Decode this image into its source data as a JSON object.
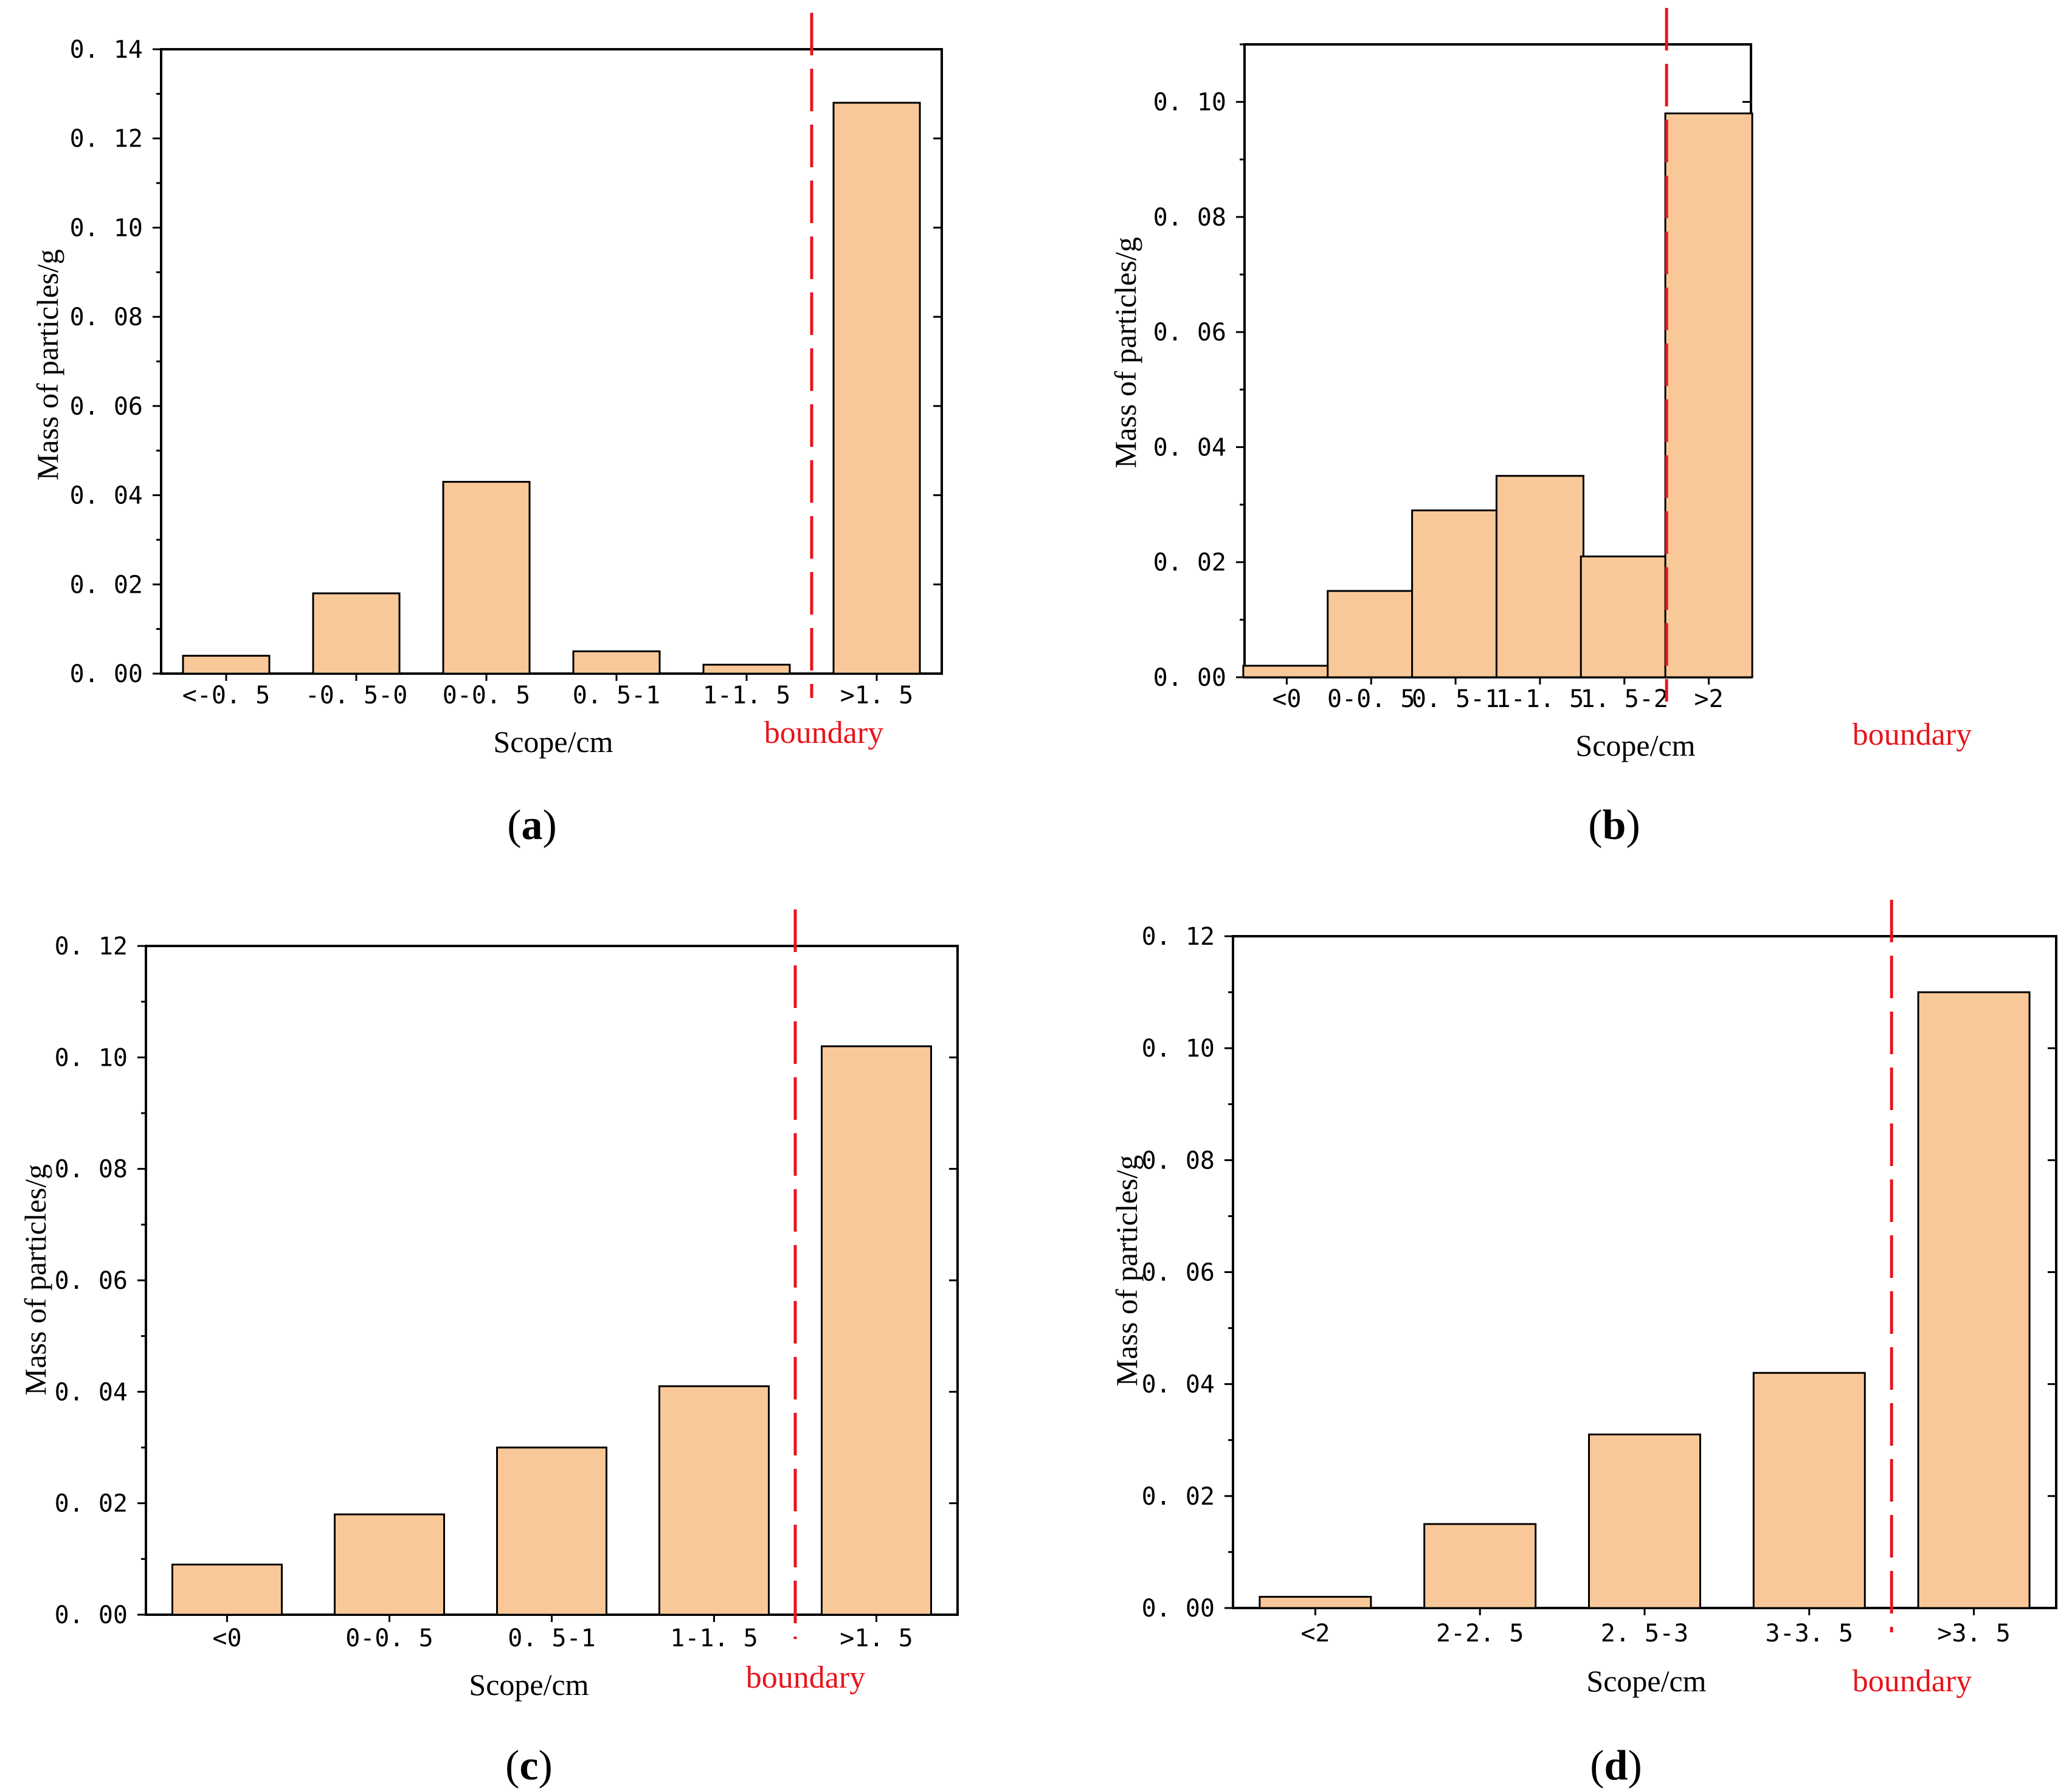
{
  "colors": {
    "bar_fill": "#f9c898",
    "bar_stroke": "#000000",
    "boundary": "#e8141c",
    "axis": "#000000"
  },
  "chart_data": [
    {
      "type": "bar",
      "caption": "a",
      "xlabel": "Scope/cm",
      "ylabel": "Mass of particles/g",
      "categories": [
        "<-0.5",
        "-0.5-0",
        "0-0.5",
        "0.5-1",
        "1-1.5",
        ">1.5"
      ],
      "category_labels": [
        "<-0. 5",
        "-0. 5-0",
        "0-0. 5",
        "0. 5-1",
        "1-1. 5",
        ">1. 5"
      ],
      "values": [
        0.004,
        0.018,
        0.043,
        0.005,
        0.002,
        0.128
      ],
      "ylim": [
        0,
        0.14
      ],
      "yticks": [
        0,
        0.02,
        0.04,
        0.06,
        0.08,
        0.1,
        0.12,
        0.14
      ],
      "ytick_labels": [
        "0. 00",
        "0. 02",
        "0. 04",
        "0. 06",
        "0. 08",
        "0. 10",
        "0. 12",
        "0. 14"
      ],
      "boundary_after_index": 4,
      "boundary_label": "boundary"
    },
    {
      "type": "bar",
      "caption": "b",
      "xlabel": "Scope/cm",
      "ylabel": "Mass of particles/g",
      "categories": [
        "<0",
        "0-0.5",
        "0.5-1",
        "1-1.5",
        "1.5-2",
        ">2"
      ],
      "category_labels": [
        "<0",
        "0-0. 5",
        "0. 5-1",
        "1-1. 5",
        "1. 5-2",
        ">2"
      ],
      "values": [
        0.002,
        0.015,
        0.029,
        0.035,
        0.021,
        0.098
      ],
      "ylim": [
        0,
        0.11
      ],
      "yticks": [
        0,
        0.02,
        0.04,
        0.06,
        0.08,
        0.1
      ],
      "ytick_labels": [
        "0. 00",
        "0. 02",
        "0. 04",
        "0. 06",
        "0. 08",
        "0. 10"
      ],
      "boundary_after_index": 4,
      "boundary_label": "boundary"
    },
    {
      "type": "bar",
      "caption": "c",
      "xlabel": "Scope/cm",
      "ylabel": "Mass of particles/g",
      "categories": [
        "<0",
        "0-0.5",
        "0.5-1",
        "1-1.5",
        ">1.5"
      ],
      "category_labels": [
        "<0",
        "0-0. 5",
        "0. 5-1",
        "1-1. 5",
        ">1. 5"
      ],
      "values": [
        0.009,
        0.018,
        0.03,
        0.041,
        0.102
      ],
      "ylim": [
        0,
        0.12
      ],
      "yticks": [
        0,
        0.02,
        0.04,
        0.06,
        0.08,
        0.1,
        0.12
      ],
      "ytick_labels": [
        "0. 00",
        "0. 02",
        "0. 04",
        "0. 06",
        "0. 08",
        "0. 10",
        "0. 12"
      ],
      "boundary_after_index": 3,
      "boundary_label": "boundary"
    },
    {
      "type": "bar",
      "caption": "d",
      "xlabel": "Scope/cm",
      "ylabel": "Mass of particles/g",
      "categories": [
        "<2",
        "2-2.5",
        "2.5-3",
        "3-3.5",
        ">3.5"
      ],
      "category_labels": [
        "<2",
        "2-2. 5",
        "2. 5-3",
        "3-3. 5",
        ">3. 5"
      ],
      "values": [
        0.002,
        0.015,
        0.031,
        0.042,
        0.11
      ],
      "ylim": [
        0,
        0.12
      ],
      "yticks": [
        0,
        0.02,
        0.04,
        0.06,
        0.08,
        0.1,
        0.12
      ],
      "ytick_labels": [
        "0. 00",
        "0. 02",
        "0. 04",
        "0. 06",
        "0. 08",
        "0. 10",
        "0. 12"
      ],
      "boundary_after_index": 3,
      "boundary_label": "boundary"
    }
  ]
}
